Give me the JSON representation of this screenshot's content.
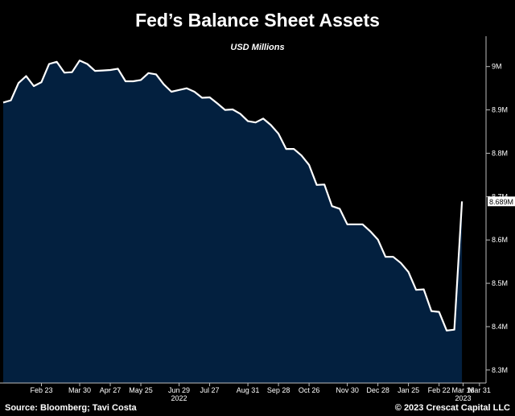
{
  "chart_data": {
    "type": "area",
    "title": "Fed’s Balance Sheet Assets",
    "subtitle": "USD Millions",
    "colors": {
      "fill": "#03203f",
      "line": "#ffffff",
      "background": "#000000",
      "axis": "#bbbbbb"
    },
    "grid": false,
    "x": [
      "2022-01-19",
      "2022-01-26",
      "2022-02-02",
      "2022-02-09",
      "2022-02-16",
      "2022-02-23",
      "2022-03-02",
      "2022-03-09",
      "2022-03-16",
      "2022-03-23",
      "2022-03-30",
      "2022-04-06",
      "2022-04-13",
      "2022-04-20",
      "2022-04-27",
      "2022-05-04",
      "2022-05-11",
      "2022-05-18",
      "2022-05-25",
      "2022-06-01",
      "2022-06-08",
      "2022-06-15",
      "2022-06-22",
      "2022-06-29",
      "2022-07-06",
      "2022-07-13",
      "2022-07-20",
      "2022-07-27",
      "2022-08-03",
      "2022-08-10",
      "2022-08-17",
      "2022-08-24",
      "2022-08-31",
      "2022-09-07",
      "2022-09-14",
      "2022-09-21",
      "2022-09-28",
      "2022-10-05",
      "2022-10-12",
      "2022-10-19",
      "2022-10-26",
      "2022-11-02",
      "2022-11-09",
      "2022-11-16",
      "2022-11-23",
      "2022-11-30",
      "2022-12-07",
      "2022-12-14",
      "2022-12-21",
      "2022-12-28",
      "2023-01-04",
      "2023-01-11",
      "2023-01-18",
      "2023-01-25",
      "2023-02-01",
      "2023-02-08",
      "2023-02-15",
      "2023-02-22",
      "2023-03-01",
      "2023-03-08",
      "2023-03-15"
    ],
    "series": [
      {
        "values": [
          8917000,
          8922000,
          8962000,
          8978000,
          8955000,
          8964000,
          9006000,
          9011000,
          8986000,
          8987000,
          9014000,
          9006000,
          8990000,
          8991000,
          8992000,
          8995000,
          8966000,
          8966000,
          8969000,
          8985000,
          8982000,
          8959000,
          8942000,
          8946000,
          8950000,
          8942000,
          8928000,
          8929000,
          8915000,
          8900000,
          8901000,
          8891000,
          8874000,
          8871000,
          8880000,
          8865000,
          8845000,
          8810000,
          8810000,
          8795000,
          8773000,
          8727000,
          8728000,
          8678000,
          8672000,
          8636000,
          8636000,
          8636000,
          8620000,
          8601000,
          8561000,
          8561000,
          8547000,
          8526000,
          8485000,
          8486000,
          8436000,
          8434000,
          8391000,
          8393000,
          8689000
        ]
      }
    ],
    "last_value_label": "8.689M",
    "y_ticks": [
      {
        "value": 8300000,
        "label": "8.3M"
      },
      {
        "value": 8400000,
        "label": "8.4M"
      },
      {
        "value": 8500000,
        "label": "8.5M"
      },
      {
        "value": 8600000,
        "label": "8.6M"
      },
      {
        "value": 8700000,
        "label": "8.7M"
      },
      {
        "value": 8800000,
        "label": "8.8M"
      },
      {
        "value": 8900000,
        "label": "8.9M"
      },
      {
        "value": 9000000,
        "label": "9M"
      }
    ],
    "x_ticks": [
      {
        "date": "2022-02-23",
        "label": "Feb 23"
      },
      {
        "date": "2022-03-30",
        "label": "Mar 30"
      },
      {
        "date": "2022-04-27",
        "label": "Apr 27"
      },
      {
        "date": "2022-05-25",
        "label": "May 25"
      },
      {
        "date": "2022-06-29",
        "label": "Jun 29"
      },
      {
        "date": "2022-07-27",
        "label": "Jul 27"
      },
      {
        "date": "2022-08-31",
        "label": "Aug 31"
      },
      {
        "date": "2022-09-28",
        "label": "Sep 28"
      },
      {
        "date": "2022-10-26",
        "label": "Oct 26"
      },
      {
        "date": "2022-11-30",
        "label": "Nov 30"
      },
      {
        "date": "2022-12-28",
        "label": "Dec 28"
      },
      {
        "date": "2023-01-25",
        "label": "Jan 25"
      },
      {
        "date": "2023-02-22",
        "label": "Feb 22"
      },
      {
        "date": "2023-03-16",
        "label": "Mar 16"
      },
      {
        "date": "2023-03-31",
        "label": "Mar 31"
      }
    ],
    "year_labels": [
      {
        "date": "2022-06-29",
        "label": "2022"
      },
      {
        "date": "2023-03-16",
        "label": "2023"
      }
    ],
    "ylim": [
      8270000,
      9070000
    ],
    "xlim": [
      "2022-01-19",
      "2023-04-06"
    ]
  },
  "footer": {
    "source": "Source: Bloomberg; Tavi Costa",
    "copyright": "© 2023 Crescat Capital LLC"
  }
}
